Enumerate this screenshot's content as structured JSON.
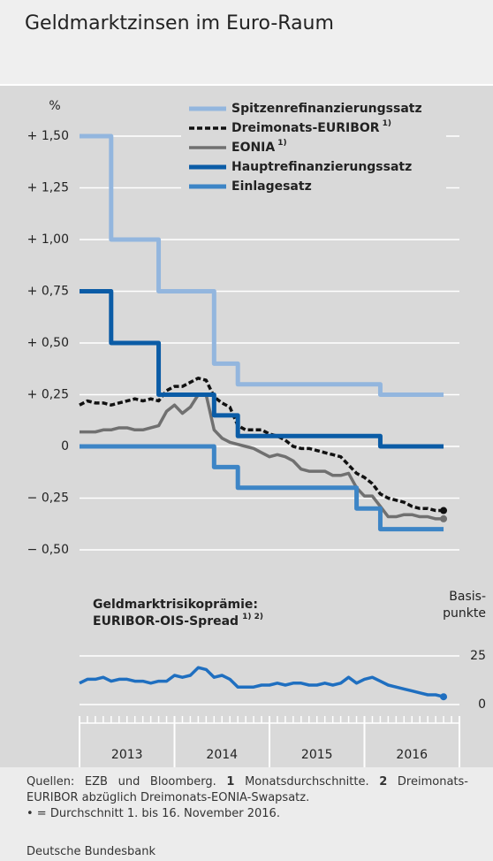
{
  "title": "Geldmarktzinsen im Euro-Raum",
  "chart_data": [
    {
      "type": "line",
      "ylabel": "%",
      "x": [
        2013,
        2013.083,
        2013.167,
        2013.25,
        2013.333,
        2013.417,
        2013.5,
        2013.583,
        2013.667,
        2013.75,
        2013.833,
        2013.917,
        2014,
        2014.083,
        2014.167,
        2014.25,
        2014.333,
        2014.417,
        2014.5,
        2014.583,
        2014.667,
        2014.75,
        2014.833,
        2014.917,
        2015,
        2015.083,
        2015.167,
        2015.25,
        2015.333,
        2015.417,
        2015.5,
        2015.583,
        2015.667,
        2015.75,
        2015.833,
        2015.917,
        2016,
        2016.083,
        2016.167,
        2016.25,
        2016.333,
        2016.417,
        2016.5,
        2016.583,
        2016.667,
        2016.75,
        2016.833
      ],
      "xlim": [
        2013,
        2017
      ],
      "ylim": [
        -0.5,
        1.5
      ],
      "yticks": [
        {
          "value": 1.5,
          "label": "+ 1,50"
        },
        {
          "value": 1.25,
          "label": "+ 1,25"
        },
        {
          "value": 1,
          "label": "+ 1,00"
        },
        {
          "value": 0.75,
          "label": "+ 0,75"
        },
        {
          "value": 0.5,
          "label": "+ 0,50"
        },
        {
          "value": 0.25,
          "label": "+ 0,25"
        },
        0,
        {
          "value": -0.25,
          "label": "− 0,25"
        },
        {
          "value": -0.5,
          "label": "− 0,50"
        }
      ],
      "grid": true,
      "legend": "top-right",
      "series": [
        {
          "name": "Spitzenrefinanzierungssatz",
          "color": "#93b6de",
          "step": true,
          "values": [
            1.5,
            1.5,
            1.5,
            1.5,
            1,
            1,
            1,
            1,
            1,
            1,
            0.75,
            0.75,
            0.75,
            0.75,
            0.75,
            0.75,
            0.75,
            0.4,
            0.4,
            0.4,
            0.3,
            0.3,
            0.3,
            0.3,
            0.3,
            0.3,
            0.3,
            0.3,
            0.3,
            0.3,
            0.3,
            0.3,
            0.3,
            0.3,
            0.3,
            0.3,
            0.3,
            0.3,
            0.25,
            0.25,
            0.25,
            0.25,
            0.25,
            0.25,
            0.25,
            0.25,
            0.25
          ]
        },
        {
          "name": "Dreimonats-EURIBOR",
          "note": "1)",
          "color": "#111111",
          "dash": true,
          "end_marker": true,
          "values": [
            0.2,
            0.22,
            0.21,
            0.21,
            0.2,
            0.21,
            0.22,
            0.23,
            0.22,
            0.23,
            0.22,
            0.27,
            0.29,
            0.29,
            0.31,
            0.33,
            0.32,
            0.24,
            0.21,
            0.19,
            0.1,
            0.08,
            0.08,
            0.08,
            0.06,
            0.05,
            0.03,
            0,
            -0.01,
            -0.01,
            -0.02,
            -0.03,
            -0.04,
            -0.05,
            -0.09,
            -0.13,
            -0.15,
            -0.18,
            -0.23,
            -0.25,
            -0.26,
            -0.27,
            -0.29,
            -0.3,
            -0.3,
            -0.31,
            -0.31
          ]
        },
        {
          "name": "EONIA",
          "note": "1)",
          "color": "#707070",
          "end_marker": true,
          "values": [
            0.07,
            0.07,
            0.07,
            0.08,
            0.08,
            0.09,
            0.09,
            0.08,
            0.08,
            0.09,
            0.1,
            0.17,
            0.2,
            0.16,
            0.19,
            0.25,
            0.25,
            0.08,
            0.04,
            0.02,
            0.01,
            0,
            -0.01,
            -0.03,
            -0.05,
            -0.04,
            -0.05,
            -0.07,
            -0.11,
            -0.12,
            -0.12,
            -0.12,
            -0.14,
            -0.14,
            -0.13,
            -0.2,
            -0.24,
            -0.24,
            -0.29,
            -0.34,
            -0.34,
            -0.33,
            -0.33,
            -0.34,
            -0.34,
            -0.35,
            -0.35
          ]
        },
        {
          "name": "Hauptrefinanzierungssatz",
          "color": "#0b5ca6",
          "step": true,
          "values": [
            0.75,
            0.75,
            0.75,
            0.75,
            0.5,
            0.5,
            0.5,
            0.5,
            0.5,
            0.5,
            0.25,
            0.25,
            0.25,
            0.25,
            0.25,
            0.25,
            0.25,
            0.15,
            0.15,
            0.15,
            0.05,
            0.05,
            0.05,
            0.05,
            0.05,
            0.05,
            0.05,
            0.05,
            0.05,
            0.05,
            0.05,
            0.05,
            0.05,
            0.05,
            0.05,
            0.05,
            0.05,
            0.05,
            0,
            0,
            0,
            0,
            0,
            0,
            0,
            0,
            0
          ]
        },
        {
          "name": "Einlagesatz",
          "color": "#3d85c6",
          "step": true,
          "values": [
            0,
            0,
            0,
            0,
            0,
            0,
            0,
            0,
            0,
            0,
            0,
            0,
            0,
            0,
            0,
            0,
            0,
            -0.1,
            -0.1,
            -0.1,
            -0.2,
            -0.2,
            -0.2,
            -0.2,
            -0.2,
            -0.2,
            -0.2,
            -0.2,
            -0.2,
            -0.2,
            -0.2,
            -0.2,
            -0.2,
            -0.2,
            -0.2,
            -0.3,
            -0.3,
            -0.3,
            -0.4,
            -0.4,
            -0.4,
            -0.4,
            -0.4,
            -0.4,
            -0.4,
            -0.4,
            -0.4
          ]
        }
      ]
    },
    {
      "type": "line",
      "title": [
        "Geldmarktrisikoprämie:",
        "EURIBOR-OIS-Spread"
      ],
      "title_note": "1) 2)",
      "ylabel": [
        "Basis-",
        "punkte"
      ],
      "x": [
        2013,
        2013.083,
        2013.167,
        2013.25,
        2013.333,
        2013.417,
        2013.5,
        2013.583,
        2013.667,
        2013.75,
        2013.833,
        2013.917,
        2014,
        2014.083,
        2014.167,
        2014.25,
        2014.333,
        2014.417,
        2014.5,
        2014.583,
        2014.667,
        2014.75,
        2014.833,
        2014.917,
        2015,
        2015.083,
        2015.167,
        2015.25,
        2015.333,
        2015.417,
        2015.5,
        2015.583,
        2015.667,
        2015.75,
        2015.833,
        2015.917,
        2016,
        2016.083,
        2016.167,
        2016.25,
        2016.333,
        2016.417,
        2016.5,
        2016.583,
        2016.667,
        2016.75,
        2016.833
      ],
      "xlim": [
        2013,
        2017
      ],
      "xticks": [
        {
          "value": 2013.5,
          "label": "2013"
        },
        {
          "value": 2014.5,
          "label": "2014"
        },
        {
          "value": 2015.5,
          "label": "2015"
        },
        {
          "value": 2016.5,
          "label": "2016"
        }
      ],
      "ylim": [
        0,
        25
      ],
      "yticks": [
        0,
        25
      ],
      "grid": true,
      "series": [
        {
          "name": "EURIBOR-OIS-Spread",
          "color": "#1f6fc0",
          "end_marker": true,
          "values": [
            11,
            13,
            13,
            14,
            12,
            13,
            13,
            12,
            12,
            11,
            12,
            12,
            15,
            14,
            15,
            19,
            18,
            14,
            15,
            13,
            9,
            9,
            9,
            10,
            10,
            11,
            10,
            11,
            11,
            10,
            10,
            11,
            10,
            11,
            14,
            11,
            13,
            14,
            12,
            10,
            9,
            8,
            7,
            6,
            5,
            5,
            4
          ]
        }
      ]
    }
  ],
  "footer": {
    "source": "Quellen: EZB und Bloomberg.",
    "notes": [
      {
        "mark": "1",
        "text": "Monatsdurchschnitte."
      },
      {
        "mark": "2",
        "text": "Dreimonats-EURIBOR abzüglich Dreimonats-EONIA-Swapsatz."
      }
    ],
    "dot_note": "• = Durchschnitt 1. bis 16. November 2016.",
    "publisher": "Deutsche Bundesbank"
  }
}
